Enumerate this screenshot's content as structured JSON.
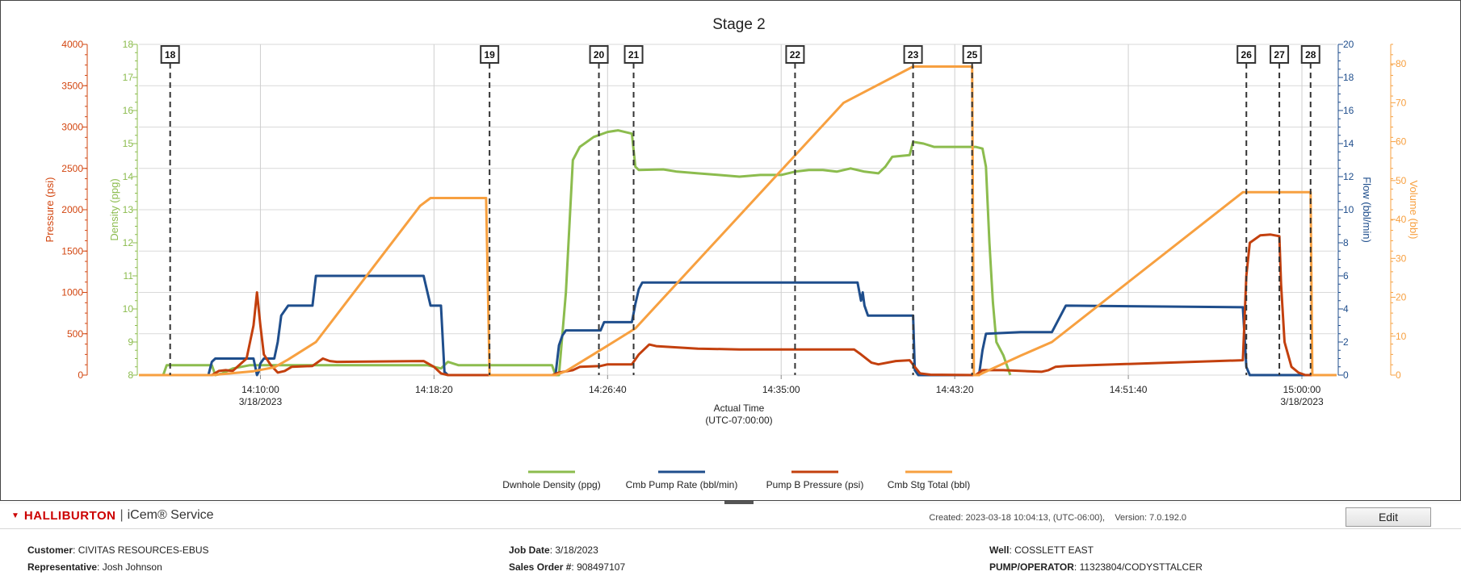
{
  "chart_data": {
    "type": "line",
    "title": "Stage 2",
    "xlabel": "Actual Time",
    "xlabel_sub": "(UTC-07:00:00)",
    "x_range": [
      "14:04:10",
      "15:01:40"
    ],
    "x_ticks": [
      {
        "time": "14:10:00",
        "date": "3/18/2023"
      },
      {
        "time": "14:18:20",
        "date": ""
      },
      {
        "time": "14:26:40",
        "date": ""
      },
      {
        "time": "14:35:00",
        "date": ""
      },
      {
        "time": "14:43:20",
        "date": ""
      },
      {
        "time": "14:51:40",
        "date": ""
      },
      {
        "time": "15:00:00",
        "date": "3/18/2023"
      }
    ],
    "axes": {
      "pressure": {
        "label": "Pressure (psi)",
        "min": 0,
        "max": 4000,
        "ticks": [
          0,
          500,
          1000,
          1500,
          2000,
          2500,
          3000,
          3500,
          4000
        ],
        "color": "#d2450f",
        "side": "left-outer"
      },
      "density": {
        "label": "Density (ppg)",
        "min": 8,
        "max": 18,
        "ticks": [
          8,
          9,
          10,
          11,
          12,
          13,
          14,
          15,
          16,
          17,
          18
        ],
        "color": "#8cbc4e",
        "side": "left-inner"
      },
      "flow": {
        "label": "Flow (bbl/min)",
        "min": 0,
        "max": 20,
        "ticks": [
          0,
          2,
          4,
          6,
          8,
          10,
          12,
          14,
          16,
          18,
          20
        ],
        "color": "#1f4e8c",
        "side": "right-inner"
      },
      "volume": {
        "label": "Volume (bbl)",
        "min": 0,
        "max": 85,
        "ticks": [
          0,
          10,
          20,
          30,
          40,
          50,
          60,
          70,
          80
        ],
        "color": "#f7a040",
        "side": "right-outer"
      }
    },
    "events": [
      {
        "label": "18",
        "time": "14:05:40"
      },
      {
        "label": "19",
        "time": "14:21:00"
      },
      {
        "label": "20",
        "time": "14:26:15"
      },
      {
        "label": "21",
        "time": "14:27:55"
      },
      {
        "label": "22",
        "time": "14:35:40"
      },
      {
        "label": "23",
        "time": "14:41:20"
      },
      {
        "label": "25",
        "time": "14:44:10"
      },
      {
        "label": "26",
        "time": "14:57:20"
      },
      {
        "label": "27",
        "time": "14:58:55"
      },
      {
        "label": "28",
        "time": "15:00:25"
      }
    ],
    "series": [
      {
        "name": "Dwnhole Density (ppg)",
        "axis": "density",
        "color": "#8cbc4e",
        "points": [
          [
            "14:04:10",
            8.0
          ],
          [
            "14:05:20",
            8.0
          ],
          [
            "14:05:30",
            8.3
          ],
          [
            "14:07:00",
            8.3
          ],
          [
            "14:07:40",
            8.3
          ],
          [
            "14:07:50",
            8.0
          ],
          [
            "14:08:10",
            8.05
          ],
          [
            "14:08:40",
            8.2
          ],
          [
            "14:09:30",
            8.3
          ],
          [
            "14:12:00",
            8.3
          ],
          [
            "14:18:00",
            8.3
          ],
          [
            "14:18:40",
            8.2
          ],
          [
            "14:19:00",
            8.4
          ],
          [
            "14:19:30",
            8.3
          ],
          [
            "14:24:00",
            8.3
          ],
          [
            "14:24:10",
            8.0
          ],
          [
            "14:24:20",
            8.0
          ],
          [
            "14:24:40",
            10.5
          ],
          [
            "14:25:00",
            14.5
          ],
          [
            "14:25:20",
            14.9
          ],
          [
            "14:26:00",
            15.2
          ],
          [
            "14:26:40",
            15.35
          ],
          [
            "14:27:10",
            15.4
          ],
          [
            "14:27:50",
            15.3
          ],
          [
            "14:28:00",
            14.3
          ],
          [
            "14:28:10",
            14.2
          ],
          [
            "14:29:20",
            14.22
          ],
          [
            "14:30:00",
            14.15
          ],
          [
            "14:31:00",
            14.1
          ],
          [
            "14:32:00",
            14.05
          ],
          [
            "14:33:00",
            14.0
          ],
          [
            "14:34:00",
            14.05
          ],
          [
            "14:35:00",
            14.05
          ],
          [
            "14:35:40",
            14.15
          ],
          [
            "14:36:20",
            14.2
          ],
          [
            "14:37:00",
            14.2
          ],
          [
            "14:37:40",
            14.15
          ],
          [
            "14:38:20",
            14.25
          ],
          [
            "14:39:00",
            14.15
          ],
          [
            "14:39:40",
            14.1
          ],
          [
            "14:40:00",
            14.3
          ],
          [
            "14:40:20",
            14.6
          ],
          [
            "14:41:10",
            14.65
          ],
          [
            "14:41:20",
            15.05
          ],
          [
            "14:41:50",
            15.0
          ],
          [
            "14:42:20",
            14.9
          ],
          [
            "14:44:20",
            14.9
          ],
          [
            "14:44:40",
            14.85
          ],
          [
            "14:44:50",
            14.3
          ],
          [
            "14:45:00",
            12.0
          ],
          [
            "14:45:10",
            10.2
          ],
          [
            "14:45:20",
            9.0
          ],
          [
            "14:45:40",
            8.6
          ],
          [
            "14:46:00",
            8.0
          ]
        ]
      },
      {
        "name": "Cmb Pump Rate (bbl/min)",
        "axis": "flow",
        "color": "#1f4e8c",
        "points": [
          [
            "14:04:10",
            0
          ],
          [
            "14:07:30",
            0
          ],
          [
            "14:07:40",
            0.8
          ],
          [
            "14:07:50",
            1.0
          ],
          [
            "14:09:40",
            1.0
          ],
          [
            "14:09:50",
            0
          ],
          [
            "14:09:55",
            0.2
          ],
          [
            "14:10:00",
            0.7
          ],
          [
            "14:10:10",
            1.0
          ],
          [
            "14:10:40",
            1.0
          ],
          [
            "14:10:50",
            2.0
          ],
          [
            "14:11:00",
            3.6
          ],
          [
            "14:11:20",
            4.2
          ],
          [
            "14:12:30",
            4.2
          ],
          [
            "14:12:40",
            6.0
          ],
          [
            "14:17:50",
            6.0
          ],
          [
            "14:18:10",
            4.2
          ],
          [
            "14:18:40",
            4.2
          ],
          [
            "14:18:50",
            0.2
          ],
          [
            "14:19:00",
            0
          ],
          [
            "14:24:10",
            0
          ],
          [
            "14:24:20",
            1.8
          ],
          [
            "14:24:30",
            2.4
          ],
          [
            "14:24:40",
            2.7
          ],
          [
            "14:26:20",
            2.7
          ],
          [
            "14:26:30",
            3.2
          ],
          [
            "14:27:50",
            3.2
          ],
          [
            "14:28:00",
            4.3
          ],
          [
            "14:28:10",
            5.2
          ],
          [
            "14:28:20",
            5.6
          ],
          [
            "14:38:40",
            5.6
          ],
          [
            "14:38:50",
            4.5
          ],
          [
            "14:38:55",
            5.0
          ],
          [
            "14:39:00",
            4.2
          ],
          [
            "14:39:10",
            3.6
          ],
          [
            "14:41:20",
            3.6
          ],
          [
            "14:41:25",
            0.3
          ],
          [
            "14:41:35",
            0
          ],
          [
            "14:44:30",
            0
          ],
          [
            "14:44:40",
            1.5
          ],
          [
            "14:44:50",
            2.5
          ],
          [
            "14:46:30",
            2.6
          ],
          [
            "14:48:00",
            2.6
          ],
          [
            "14:48:20",
            3.4
          ],
          [
            "14:48:40",
            4.2
          ],
          [
            "14:57:10",
            4.1
          ],
          [
            "14:57:20",
            0.5
          ],
          [
            "14:57:30",
            0
          ],
          [
            "15:01:40",
            0
          ]
        ]
      },
      {
        "name": "Pump B Pressure (psi)",
        "axis": "pressure",
        "color": "#c3400e",
        "points": [
          [
            "14:04:10",
            0
          ],
          [
            "14:07:40",
            0
          ],
          [
            "14:08:00",
            50
          ],
          [
            "14:08:20",
            60
          ],
          [
            "14:08:40",
            50
          ],
          [
            "14:09:20",
            200
          ],
          [
            "14:09:40",
            600
          ],
          [
            "14:09:50",
            1000
          ],
          [
            "14:10:00",
            600
          ],
          [
            "14:10:10",
            250
          ],
          [
            "14:10:30",
            120
          ],
          [
            "14:10:50",
            30
          ],
          [
            "14:11:10",
            50
          ],
          [
            "14:11:30",
            100
          ],
          [
            "14:12:30",
            110
          ],
          [
            "14:13:00",
            200
          ],
          [
            "14:13:20",
            170
          ],
          [
            "14:13:40",
            160
          ],
          [
            "14:17:50",
            170
          ],
          [
            "14:18:20",
            100
          ],
          [
            "14:18:40",
            20
          ],
          [
            "14:19:00",
            0
          ],
          [
            "14:24:00",
            0
          ],
          [
            "14:24:20",
            30
          ],
          [
            "14:25:00",
            60
          ],
          [
            "14:25:20",
            100
          ],
          [
            "14:26:20",
            110
          ],
          [
            "14:26:40",
            130
          ],
          [
            "14:27:50",
            130
          ],
          [
            "14:28:10",
            250
          ],
          [
            "14:28:40",
            370
          ],
          [
            "14:29:00",
            350
          ],
          [
            "14:31:00",
            320
          ],
          [
            "14:33:00",
            310
          ],
          [
            "14:35:00",
            310
          ],
          [
            "14:36:00",
            310
          ],
          [
            "14:38:30",
            310
          ],
          [
            "14:38:50",
            250
          ],
          [
            "14:39:20",
            150
          ],
          [
            "14:39:40",
            130
          ],
          [
            "14:40:30",
            170
          ],
          [
            "14:41:10",
            180
          ],
          [
            "14:41:25",
            100
          ],
          [
            "14:41:40",
            20
          ],
          [
            "14:42:10",
            5
          ],
          [
            "14:44:20",
            0
          ],
          [
            "14:44:40",
            60
          ],
          [
            "14:45:40",
            60
          ],
          [
            "14:47:30",
            40
          ],
          [
            "14:47:50",
            60
          ],
          [
            "14:48:10",
            100
          ],
          [
            "14:48:40",
            110
          ],
          [
            "14:57:10",
            180
          ],
          [
            "14:57:20",
            1200
          ],
          [
            "14:57:30",
            1600
          ],
          [
            "14:58:00",
            1690
          ],
          [
            "14:58:30",
            1700
          ],
          [
            "14:58:55",
            1680
          ],
          [
            "14:59:00",
            1100
          ],
          [
            "14:59:10",
            400
          ],
          [
            "14:59:30",
            100
          ],
          [
            "14:59:50",
            30
          ],
          [
            "15:00:10",
            0
          ],
          [
            "15:01:40",
            0
          ]
        ]
      },
      {
        "name": "Cmb Stg Total (bbl)",
        "axis": "volume",
        "color": "#f7a040",
        "points": [
          [
            "14:04:10",
            0
          ],
          [
            "14:07:40",
            0
          ],
          [
            "14:09:40",
            1.0
          ],
          [
            "14:10:40",
            2.0
          ],
          [
            "14:11:20",
            4.0
          ],
          [
            "14:12:40",
            8.5
          ],
          [
            "14:17:40",
            43.5
          ],
          [
            "14:18:10",
            45.5
          ],
          [
            "14:20:50",
            45.5
          ],
          [
            "14:21:00",
            0
          ],
          [
            "14:24:10",
            0
          ],
          [
            "14:24:40",
            1.0
          ],
          [
            "14:26:30",
            7.0
          ],
          [
            "14:28:00",
            12.0
          ],
          [
            "14:38:00",
            70.0
          ],
          [
            "14:41:20",
            79.3
          ],
          [
            "14:44:10",
            79.3
          ],
          [
            "14:44:15",
            0
          ],
          [
            "14:44:30",
            0
          ],
          [
            "14:44:40",
            0.5
          ],
          [
            "14:46:30",
            5.0
          ],
          [
            "14:48:00",
            8.5
          ],
          [
            "14:57:10",
            47.0
          ],
          [
            "14:57:20",
            47.0
          ],
          [
            "15:00:25",
            47.0
          ],
          [
            "15:00:30",
            0
          ],
          [
            "15:01:40",
            0
          ]
        ]
      }
    ],
    "legend": {
      "placement": "bottom-center"
    },
    "grid": true
  },
  "footer": {
    "brand": "HALLIBURTON",
    "service": "iCem® Service",
    "separator": "|",
    "created": "Created: 2023-03-18  10:04:13, (UTC-06:00),",
    "version": "Version: 7.0.192.0",
    "edit_label": "Edit",
    "customer_label": "Customer",
    "customer": "CIVITAS RESOURCES-EBUS",
    "representative_label": "Representative",
    "representative": "Josh Johnson",
    "job_date_label": "Job Date",
    "job_date": "3/18/2023",
    "sales_order_label": "Sales Order #",
    "sales_order": "908497107",
    "well_label": "Well",
    "well": "COSSLETT EAST",
    "pump_operator_label": "PUMP/OPERATOR",
    "pump_operator": "11323804/CODYSTTALCER"
  }
}
